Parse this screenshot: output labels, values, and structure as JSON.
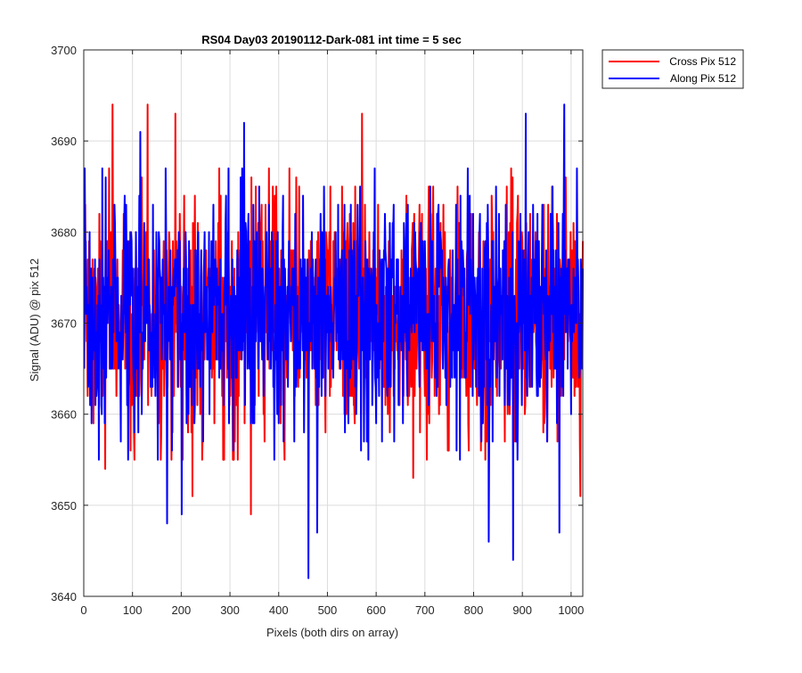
{
  "chart_data": {
    "type": "line",
    "title": "RS04 Day03 20190112-Dark-081 int time = 5 sec",
    "xlabel": "Pixels (both dirs on array)",
    "ylabel": "Signal (ADU) @ pix 512",
    "xlim": [
      0,
      1024
    ],
    "ylim": [
      3640,
      3700
    ],
    "xticks": [
      0,
      100,
      200,
      300,
      400,
      500,
      600,
      700,
      800,
      900,
      1000
    ],
    "yticks": [
      3640,
      3650,
      3660,
      3670,
      3680,
      3690,
      3700
    ],
    "grid": true,
    "legend_location": "outside-top-right",
    "series": [
      {
        "name": "Cross Pix 512",
        "color": "#ff0000",
        "mean": 3671,
        "noise_sigma": 6.5,
        "extremes": [
          {
            "x": 58,
            "y": 3694
          },
          {
            "x": 130,
            "y": 3694
          },
          {
            "x": 187,
            "y": 3693
          },
          {
            "x": 570,
            "y": 3693
          },
          {
            "x": 342,
            "y": 3649
          },
          {
            "x": 222,
            "y": 3651
          },
          {
            "x": 1018,
            "y": 3651
          },
          {
            "x": 43,
            "y": 3654
          },
          {
            "x": 675,
            "y": 3653
          }
        ]
      },
      {
        "name": "Along Pix 512",
        "color": "#0000ff",
        "mean": 3671,
        "noise_sigma": 6.5,
        "extremes": [
          {
            "x": 985,
            "y": 3694
          },
          {
            "x": 906,
            "y": 3693
          },
          {
            "x": 115,
            "y": 3691
          },
          {
            "x": 328,
            "y": 3692
          },
          {
            "x": 460,
            "y": 3642
          },
          {
            "x": 880,
            "y": 3644
          },
          {
            "x": 830,
            "y": 3646
          },
          {
            "x": 975,
            "y": 3647
          },
          {
            "x": 170,
            "y": 3648
          },
          {
            "x": 478,
            "y": 3647
          },
          {
            "x": 200,
            "y": 3649
          }
        ]
      }
    ]
  }
}
